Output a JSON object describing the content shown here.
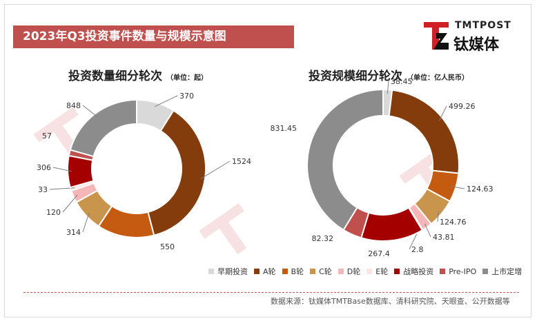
{
  "header": {
    "title": "2023年Q3投资事件数量与规模示意图",
    "logo_en": "TMTPOST",
    "logo_cn": "钛媒体"
  },
  "footer": {
    "source": "数据来源：钛媒体TMTBase数据库、清科研究院、天眼查、公开数据等"
  },
  "legend": [
    {
      "label": "早期投资",
      "color": "#d9d9d9"
    },
    {
      "label": "A轮",
      "color": "#843c0c"
    },
    {
      "label": "B轮",
      "color": "#c55a11"
    },
    {
      "label": "C轮",
      "color": "#c9954c"
    },
    {
      "label": "D轮",
      "color": "#f4b6b6"
    },
    {
      "label": "E轮",
      "color": "#fbe5e5"
    },
    {
      "label": "战略投资",
      "color": "#a50000"
    },
    {
      "label": "Pre-IPO",
      "color": "#c0504d"
    },
    {
      "label": "上市定增",
      "color": "#8c8c8c"
    }
  ],
  "chart_data": [
    {
      "type": "pie",
      "variant": "donut",
      "title": "投资数量细分轮次",
      "subtitle": "（单位：起）",
      "categories": [
        "早期投资",
        "A轮",
        "B轮",
        "C轮",
        "D轮",
        "E轮",
        "战略投资",
        "Pre-IPO",
        "上市定增"
      ],
      "values": [
        370,
        1524,
        550,
        314,
        120,
        33,
        306,
        57,
        848
      ],
      "labels": [
        "370",
        "1524",
        "550",
        "314",
        "120",
        "33",
        "306",
        "57",
        "848"
      ]
    },
    {
      "type": "pie",
      "variant": "donut",
      "title": "投资规模细分轮次",
      "subtitle": "（单位：亿人民币）",
      "categories": [
        "早期投资",
        "A轮",
        "B轮",
        "C轮",
        "D轮",
        "E轮",
        "战略投资",
        "Pre-IPO",
        "上市定增"
      ],
      "values": [
        38.45,
        499.26,
        124.63,
        124.76,
        43.81,
        2.8,
        267.4,
        82.32,
        831.45
      ],
      "labels": [
        "38.45",
        "499.26",
        "124.63",
        "124.76",
        "43.81",
        "2.8",
        "267.4",
        "82.32",
        "831.45"
      ]
    }
  ]
}
